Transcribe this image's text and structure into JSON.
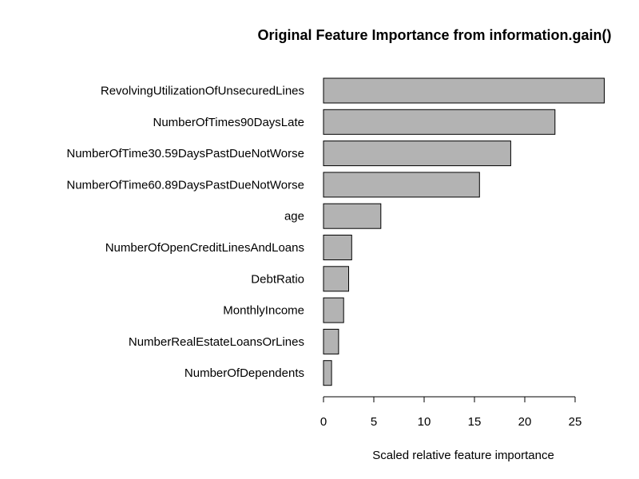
{
  "chart_data": {
    "type": "bar",
    "orientation": "horizontal",
    "title": "Original Feature Importance from information.gain()",
    "xlabel": "Scaled relative feature importance",
    "ylabel": "",
    "categories": [
      "RevolvingUtilizationOfUnsecuredLines",
      "NumberOfTimes90DaysLate",
      "NumberOfTime30.59DaysPastDueNotWorse",
      "NumberOfTime60.89DaysPastDueNotWorse",
      "age",
      "NumberOfOpenCreditLinesAndLoans",
      "DebtRatio",
      "MonthlyIncome",
      "NumberRealEstateLoansOrLines",
      "NumberOfDependents"
    ],
    "values": [
      27.9,
      23.0,
      18.6,
      15.5,
      5.7,
      2.8,
      2.5,
      2.0,
      1.5,
      0.8
    ],
    "xlim": [
      0,
      28
    ],
    "xticks": [
      0,
      5,
      10,
      15,
      20,
      25
    ],
    "xtick_labels": [
      "0",
      "5",
      "10",
      "15",
      "20",
      "25"
    ],
    "bar_color": "#b3b3b3",
    "grid": false,
    "legend": "none"
  }
}
